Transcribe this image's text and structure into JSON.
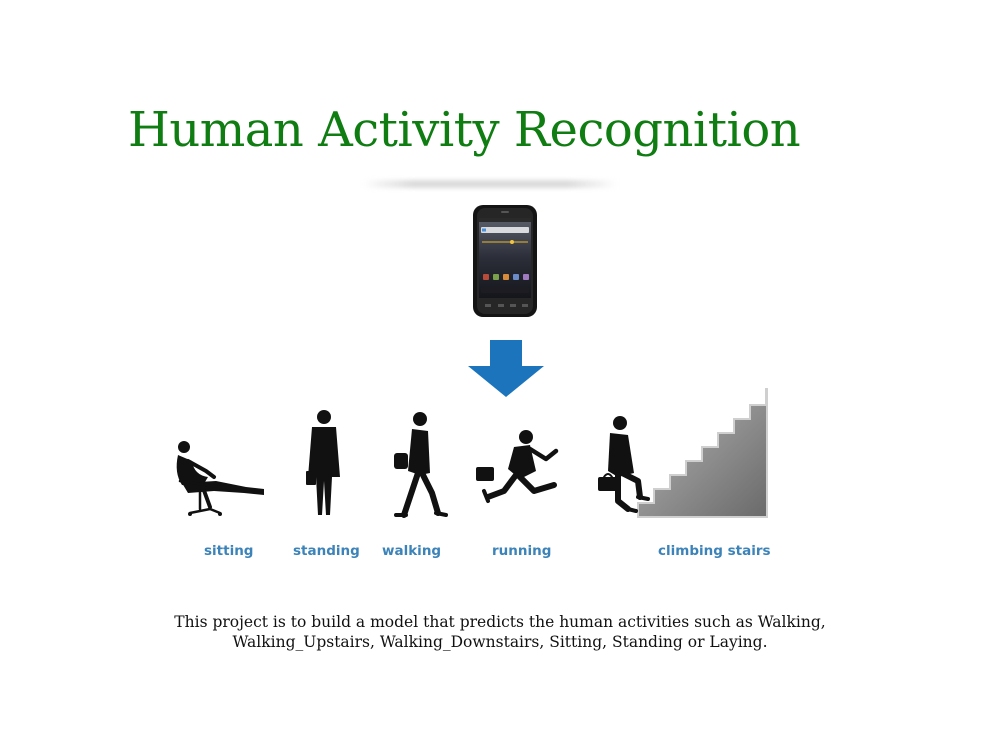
{
  "title": "Human Activity Recognition",
  "activities": [
    {
      "label": "sitting"
    },
    {
      "label": "standing"
    },
    {
      "label": "walking"
    },
    {
      "label": "running"
    },
    {
      "label": "climbing stairs"
    }
  ],
  "description": {
    "line1": "This project is to build a model that predicts the human activities such as Walking,",
    "line2": "Walking_Upstairs, Walking_Downstairs, Sitting, Standing or Laying."
  },
  "colors": {
    "title": "#0f7d12",
    "label": "#3b83b8",
    "arrow": "#1c75bc",
    "silhouette": "#111111"
  },
  "icons": {
    "device": "smartphone-icon",
    "flow": "arrow-down-icon"
  }
}
